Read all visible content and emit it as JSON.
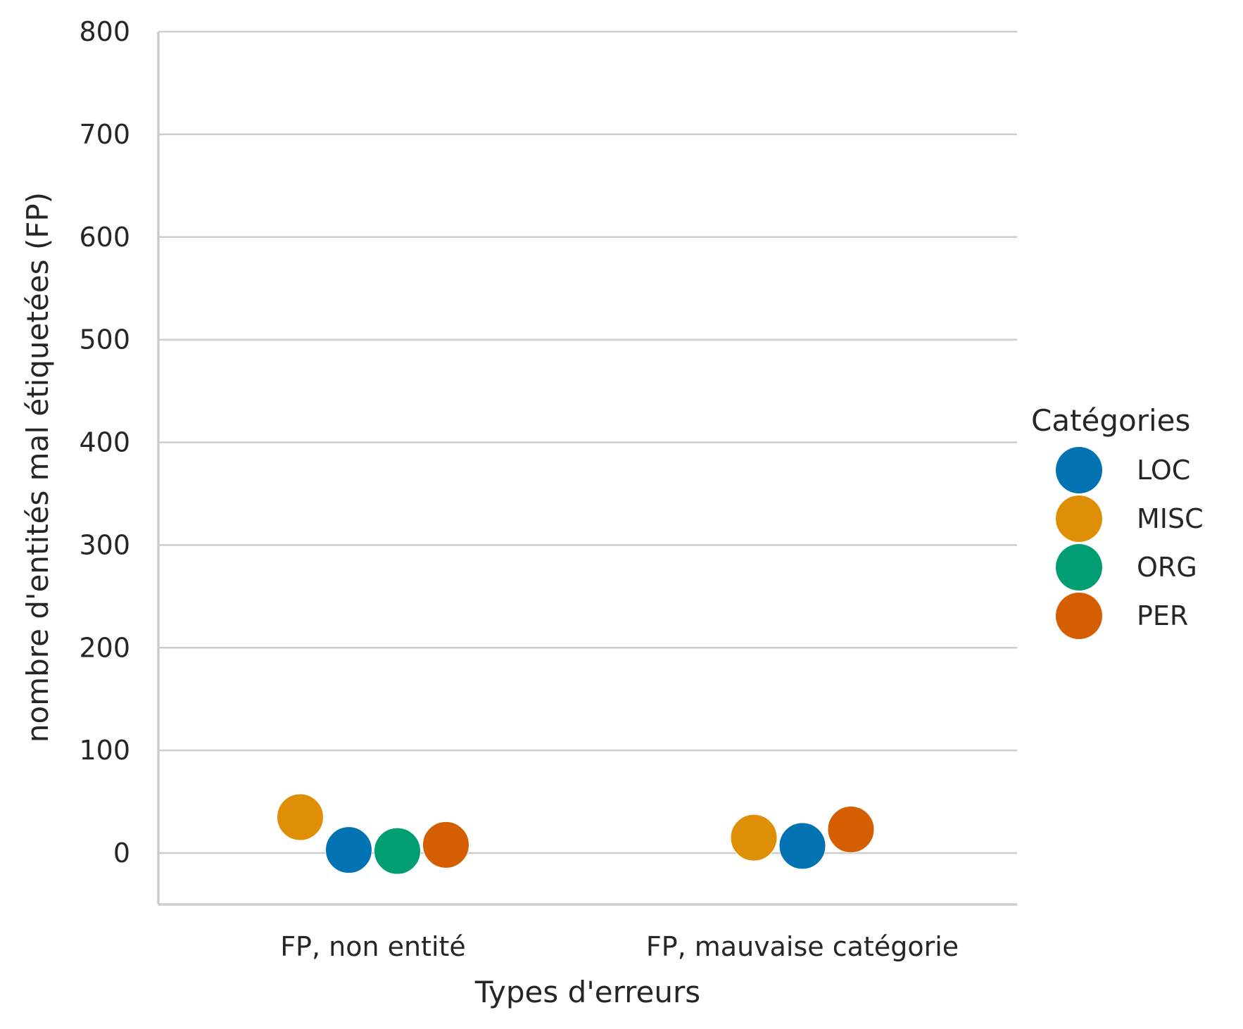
{
  "chart_data": {
    "type": "scatter",
    "subtype": "swarm/strip",
    "title": "",
    "xlabel": "Types d'erreurs",
    "ylabel": "nombre d'entités mal étiquetées (FP)",
    "categories": [
      "FP, non entité",
      "FP, mauvaise catégorie"
    ],
    "ylim": [
      -50,
      800
    ],
    "yticks": [
      0,
      100,
      200,
      300,
      400,
      500,
      600,
      700,
      800
    ],
    "grid": "horizontal",
    "legend": {
      "title": "Catégories",
      "placement": "right",
      "entries": [
        "LOC",
        "MISC",
        "ORG",
        "PER"
      ]
    },
    "series": [
      {
        "name": "LOC",
        "color": "#0173b2",
        "values": [
          3,
          7
        ]
      },
      {
        "name": "MISC",
        "color": "#de8f05",
        "values": [
          35,
          15
        ]
      },
      {
        "name": "ORG",
        "color": "#029e73",
        "values": [
          2,
          null
        ]
      },
      {
        "name": "PER",
        "color": "#d55e00",
        "values": [
          8,
          23
        ]
      }
    ]
  }
}
